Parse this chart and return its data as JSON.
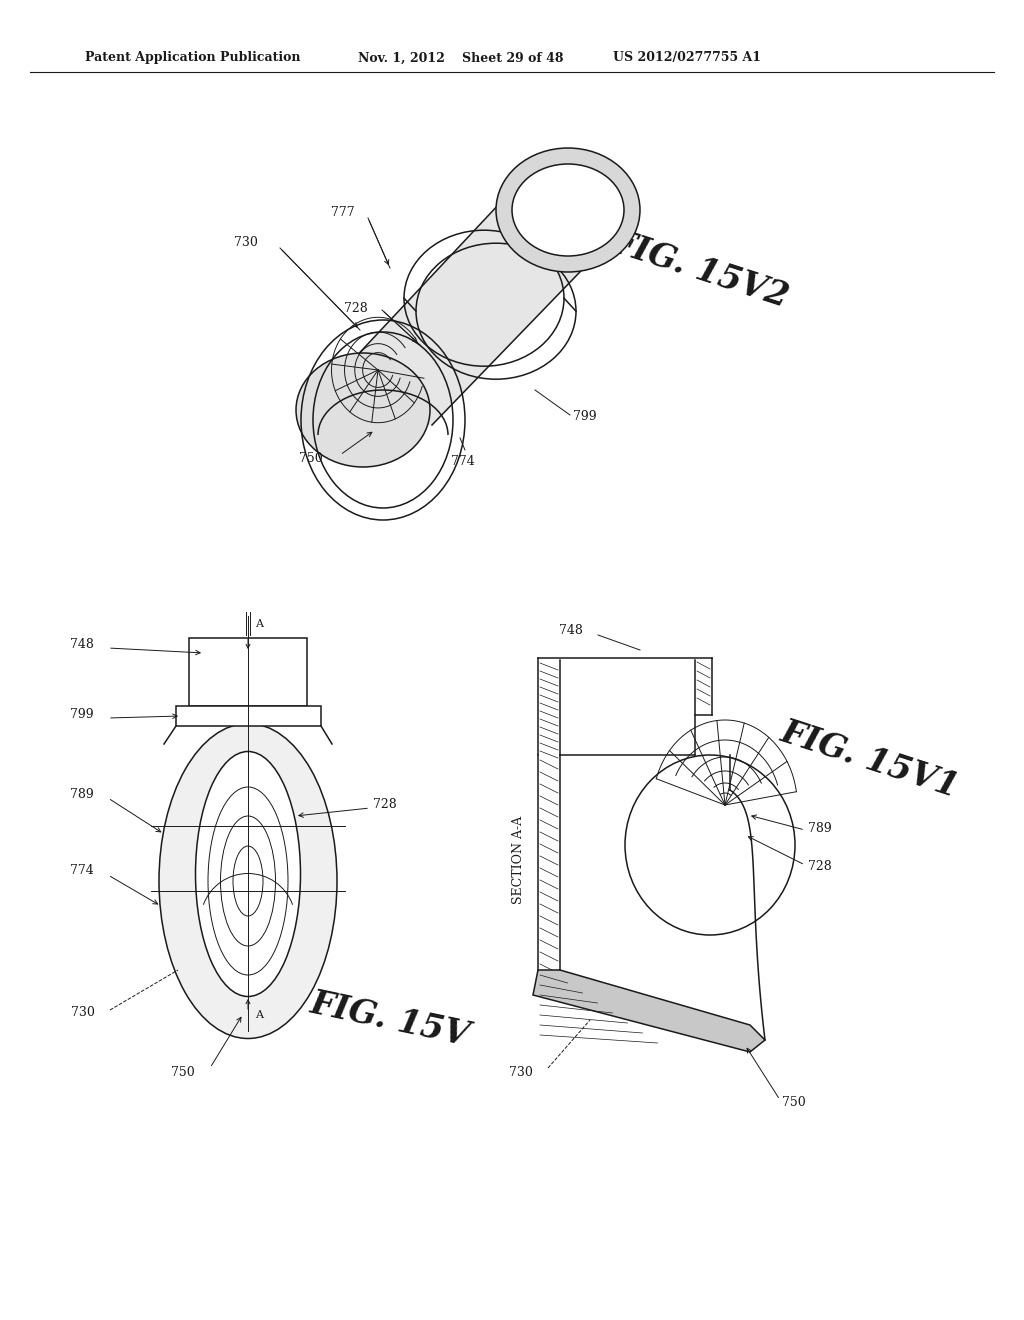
{
  "bg_color": "#ffffff",
  "line_color": "#1a1a1a",
  "header_text": "Patent Application Publication",
  "header_date": "Nov. 1, 2012",
  "header_sheet": "Sheet 29 of 48",
  "header_patent": "US 2012/0277755 A1",
  "fig_top_label": "FIG. 15V2",
  "fig_bl_label": "FIG. 15V",
  "fig_br_label": "FIG. 15V1",
  "section_label": "SECTION A-A"
}
